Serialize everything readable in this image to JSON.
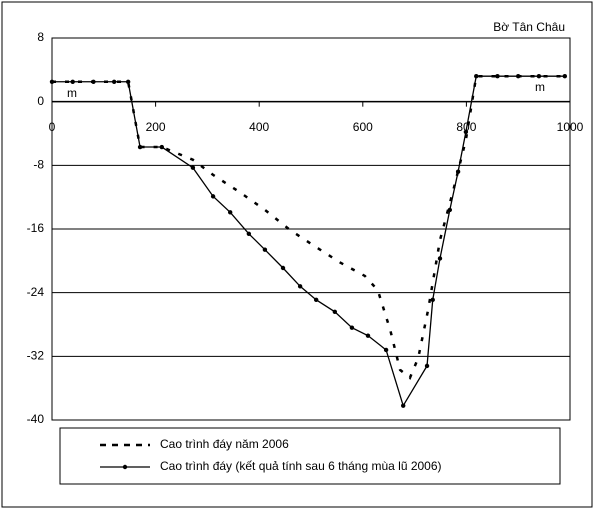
{
  "chart_data": {
    "type": "line",
    "annotations": [
      "Bờ Tân Châu",
      "m",
      "m"
    ],
    "xlim": [
      0,
      1000
    ],
    "xticks": [
      0,
      200,
      400,
      600,
      800,
      1000
    ],
    "ylim": [
      -40,
      8
    ],
    "yticks": [
      8,
      0,
      -8,
      -16,
      -24,
      -32,
      -40
    ],
    "grid": true,
    "series": [
      {
        "name": "Cao trình đáy năm 2006",
        "color": "#000000",
        "dash": true,
        "markers": false,
        "x": [
          0,
          147,
          170,
          212,
          272,
          311,
          363,
          411,
          459,
          508,
          556,
          604,
          629,
          653,
          672,
          691,
          707,
          726,
          749,
          776,
          799,
          819,
          990
        ],
        "values": [
          2.5,
          2.5,
          -5.7,
          -5.7,
          -7.3,
          -9.2,
          -11.4,
          -13.6,
          -16.1,
          -18.2,
          -20.2,
          -21.9,
          -23.7,
          -28.7,
          -33.7,
          -34.7,
          -32.2,
          -26.2,
          -17.4,
          -10.8,
          -4.8,
          3.2,
          3.2
        ]
      },
      {
        "name": "Cao trình đáy (kết quả tính sau 6 tháng mùa lũ 2006)",
        "color": "#000000",
        "dash": false,
        "markers": true,
        "x": [
          0,
          40,
          80,
          120,
          147,
          170,
          212,
          272,
          311,
          344,
          380,
          411,
          446,
          479,
          510,
          546,
          579,
          610,
          645,
          678,
          724,
          735,
          749,
          768,
          784,
          799,
          819,
          860,
          900,
          940,
          990
        ],
        "values": [
          2.5,
          2.5,
          2.5,
          2.5,
          2.5,
          -5.7,
          -5.7,
          -8.3,
          -11.9,
          -13.9,
          -16.6,
          -18.6,
          -20.9,
          -23.2,
          -24.9,
          -26.4,
          -28.4,
          -29.4,
          -31.2,
          -38.2,
          -33.2,
          -24.9,
          -19.7,
          -13.6,
          -8.8,
          -3.8,
          3.2,
          3.2,
          3.2,
          3.2,
          3.2
        ]
      }
    ]
  }
}
